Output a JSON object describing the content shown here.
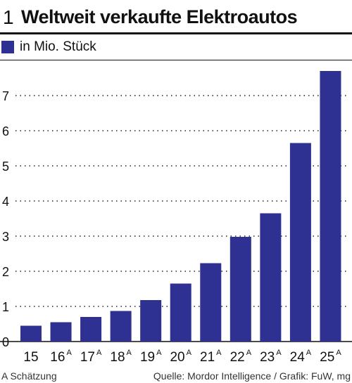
{
  "header": {
    "figure_number": "1",
    "title": "Weltweit verkaufte Elektroautos"
  },
  "legend": {
    "label": "in Mio. Stück",
    "color": "#2e3092"
  },
  "footer": {
    "note": "A Schätzung",
    "source": "Quelle: Mordor Intelligence / Grafik: FuW, mg"
  },
  "chart_data": {
    "type": "bar",
    "title": "Weltweit verkaufte Elektroautos",
    "ylabel": "in Mio. Stück",
    "categories": [
      {
        "label": "15",
        "sup": ""
      },
      {
        "label": "16",
        "sup": "A"
      },
      {
        "label": "17",
        "sup": "A"
      },
      {
        "label": "18",
        "sup": "A"
      },
      {
        "label": "19",
        "sup": "A"
      },
      {
        "label": "20",
        "sup": "A"
      },
      {
        "label": "21",
        "sup": "A"
      },
      {
        "label": "22",
        "sup": "A"
      },
      {
        "label": "23",
        "sup": "A"
      },
      {
        "label": "24",
        "sup": "A"
      },
      {
        "label": "25",
        "sup": "A"
      }
    ],
    "values": [
      0.45,
      0.55,
      0.7,
      0.87,
      1.18,
      1.65,
      2.23,
      2.98,
      3.65,
      5.65,
      7.7
    ],
    "yticks": [
      0,
      1,
      2,
      3,
      4,
      5,
      6,
      7
    ],
    "ylim": [
      0,
      8
    ],
    "grid": true,
    "bar_color": "#2e3092"
  }
}
